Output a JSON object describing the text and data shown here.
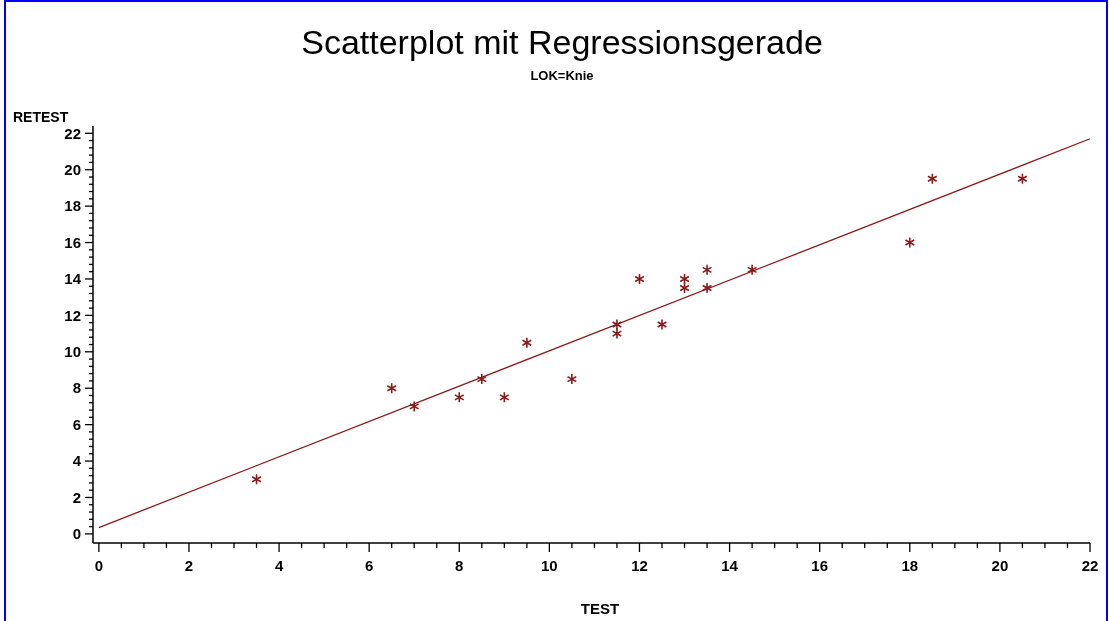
{
  "chart_data": {
    "type": "scatter",
    "title": "Scatterplot mit Regressionsgerade",
    "subtitle": "LOK=Knie",
    "xlabel": "TEST",
    "ylabel": "RETEST",
    "grid": false,
    "xlim": [
      -0.13,
      22
    ],
    "ylim": [
      -0.5,
      22.4
    ],
    "xticks": [
      0,
      {
        "value": 0.5,
        "label": null
      },
      {
        "value": 1,
        "label": null
      },
      {
        "value": 1.5,
        "label": null
      },
      2,
      {
        "value": 2.5,
        "label": null
      },
      {
        "value": 3,
        "label": null
      },
      {
        "value": 3.5,
        "label": null
      },
      4,
      {
        "value": 4.5,
        "label": null
      },
      {
        "value": 5,
        "label": null
      },
      {
        "value": 5.5,
        "label": null
      },
      6,
      {
        "value": 6.5,
        "label": null
      },
      {
        "value": 7,
        "label": null
      },
      {
        "value": 7.5,
        "label": null
      },
      8,
      {
        "value": 8.5,
        "label": null
      },
      {
        "value": 9,
        "label": null
      },
      {
        "value": 9.5,
        "label": null
      },
      10,
      {
        "value": 10.5,
        "label": null
      },
      {
        "value": 11,
        "label": null
      },
      {
        "value": 11.5,
        "label": null
      },
      12,
      {
        "value": 12.5,
        "label": null
      },
      {
        "value": 13,
        "label": null
      },
      {
        "value": 13.5,
        "label": null
      },
      14,
      {
        "value": 14.5,
        "label": null
      },
      {
        "value": 15,
        "label": null
      },
      {
        "value": 15.5,
        "label": null
      },
      16,
      {
        "value": 16.5,
        "label": null
      },
      {
        "value": 17,
        "label": null
      },
      {
        "value": 17.5,
        "label": null
      },
      18,
      {
        "value": 18.5,
        "label": null
      },
      {
        "value": 19,
        "label": null
      },
      {
        "value": 19.5,
        "label": null
      },
      20,
      {
        "value": 20.5,
        "label": null
      },
      {
        "value": 21,
        "label": null
      },
      {
        "value": 21.5,
        "label": null
      },
      22
    ],
    "yticks": [
      0,
      {
        "value": 0.4,
        "label": null
      },
      {
        "value": 0.8,
        "label": null
      },
      {
        "value": 1.2,
        "label": null
      },
      {
        "value": 1.6,
        "label": null
      },
      2,
      {
        "value": 2.4,
        "label": null
      },
      {
        "value": 2.8,
        "label": null
      },
      {
        "value": 3.2,
        "label": null
      },
      {
        "value": 3.6,
        "label": null
      },
      4,
      {
        "value": 4.4,
        "label": null
      },
      {
        "value": 4.8,
        "label": null
      },
      {
        "value": 5.2,
        "label": null
      },
      {
        "value": 5.6,
        "label": null
      },
      6,
      {
        "value": 6.4,
        "label": null
      },
      {
        "value": 6.8,
        "label": null
      },
      {
        "value": 7.2,
        "label": null
      },
      {
        "value": 7.6,
        "label": null
      },
      8,
      {
        "value": 8.4,
        "label": null
      },
      {
        "value": 8.8,
        "label": null
      },
      {
        "value": 9.2,
        "label": null
      },
      {
        "value": 9.6,
        "label": null
      },
      10,
      {
        "value": 10.4,
        "label": null
      },
      {
        "value": 10.8,
        "label": null
      },
      {
        "value": 11.2,
        "label": null
      },
      {
        "value": 11.6,
        "label": null
      },
      12,
      {
        "value": 12.4,
        "label": null
      },
      {
        "value": 12.8,
        "label": null
      },
      {
        "value": 13.2,
        "label": null
      },
      {
        "value": 13.6,
        "label": null
      },
      14,
      {
        "value": 14.4,
        "label": null
      },
      {
        "value": 14.8,
        "label": null
      },
      {
        "value": 15.2,
        "label": null
      },
      {
        "value": 15.6,
        "label": null
      },
      16,
      {
        "value": 16.4,
        "label": null
      },
      {
        "value": 16.8,
        "label": null
      },
      {
        "value": 17.2,
        "label": null
      },
      {
        "value": 17.6,
        "label": null
      },
      18,
      {
        "value": 18.4,
        "label": null
      },
      {
        "value": 18.8,
        "label": null
      },
      {
        "value": 19.2,
        "label": null
      },
      {
        "value": 19.6,
        "label": null
      },
      20,
      {
        "value": 20.4,
        "label": null
      },
      {
        "value": 20.8,
        "label": null
      },
      {
        "value": 21.2,
        "label": null
      },
      {
        "value": 21.6,
        "label": null
      },
      22
    ],
    "series": [
      {
        "marker": "cross",
        "color": "#8b1a1a",
        "x": [
          3.5,
          6.5,
          7,
          8,
          8.5,
          9,
          9.5,
          10.5,
          11.5,
          11.5,
          12,
          12.5,
          13,
          13,
          13.5,
          13.5,
          14.5,
          18,
          18.5,
          20.5
        ],
        "values": [
          3,
          8,
          7,
          7.5,
          8.5,
          7.5,
          10.5,
          8.5,
          11.5,
          11,
          14,
          11.5,
          14,
          13.5,
          14.5,
          13.5,
          14.5,
          16,
          19.5,
          19.5
        ]
      },
      {
        "type": "line",
        "color": "#8b1a1a",
        "x": [
          0,
          22
        ],
        "values": [
          0.35,
          21.7
        ]
      }
    ]
  }
}
